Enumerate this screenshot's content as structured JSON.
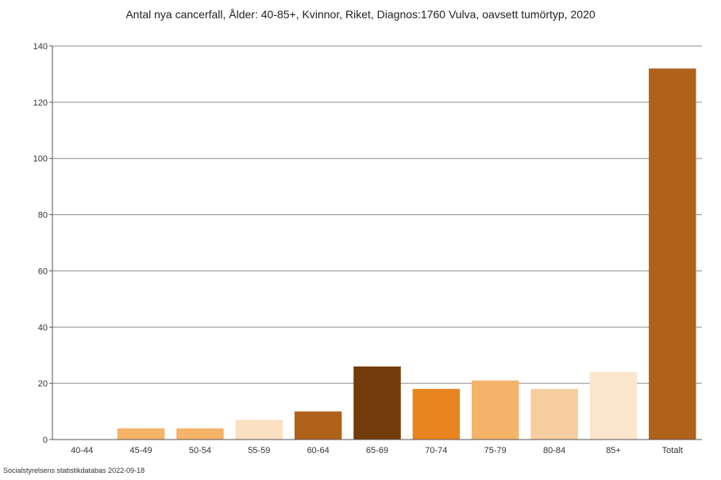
{
  "chart_data": {
    "type": "bar",
    "title": "Antal nya cancerfall, Ålder: 40-85+, Kvinnor, Riket, Diagnos:1760 Vulva, oavsett tumörtyp, 2020",
    "xlabel": "",
    "ylabel": "",
    "categories": [
      "40-44",
      "45-49",
      "50-54",
      "55-59",
      "60-64",
      "65-69",
      "70-74",
      "75-79",
      "80-84",
      "85+",
      "Totalt"
    ],
    "values": [
      0,
      4,
      4,
      7,
      10,
      26,
      18,
      21,
      18,
      24,
      132
    ],
    "colors": [
      "#f5b36a",
      "#f5b36a",
      "#f5b36a",
      "#fbe0c2",
      "#b0621b",
      "#743c0a",
      "#e8841e",
      "#f5b36a",
      "#f5cd9e",
      "#fbe5cc",
      "#b0621b"
    ],
    "ylim": [
      0,
      140
    ],
    "yticks": [
      0,
      20,
      40,
      60,
      80,
      100,
      120,
      140
    ],
    "grid": true,
    "legend": "none"
  },
  "source": "Socialstyrelsens statistikdatabas 2022-09-18"
}
